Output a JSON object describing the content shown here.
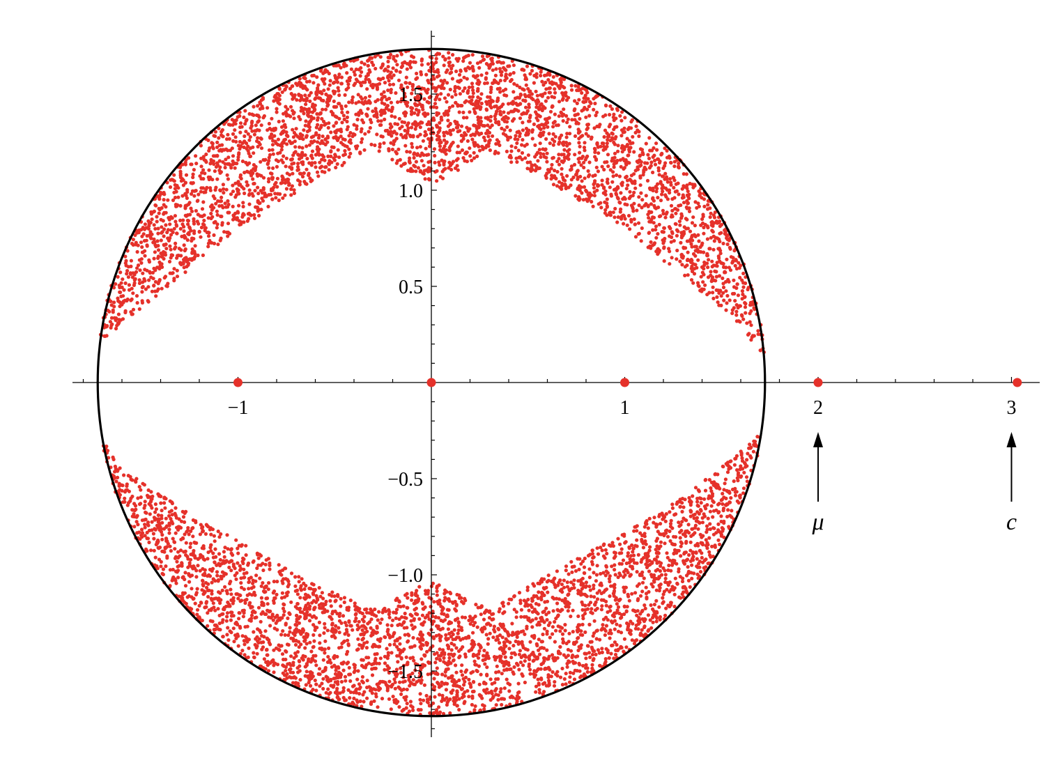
{
  "chart_data": {
    "type": "scatter",
    "title": "",
    "xlabel": "",
    "ylabel": "",
    "xlim": [
      -1.8,
      3.15
    ],
    "ylim": [
      -1.82,
      1.82
    ],
    "grid": false,
    "legend": "none",
    "x_ticks": [
      {
        "value": -1,
        "label": "−1"
      },
      {
        "value": 1,
        "label": "1"
      },
      {
        "value": 2,
        "label": "2"
      },
      {
        "value": 3,
        "label": "3"
      }
    ],
    "y_ticks": [
      {
        "value": 1.5,
        "label": "1.5"
      },
      {
        "value": 1.0,
        "label": "1.0"
      },
      {
        "value": 0.5,
        "label": "0.5"
      },
      {
        "value": -0.5,
        "label": "−0.5"
      },
      {
        "value": -1.0,
        "label": "−1.0"
      },
      {
        "value": -1.5,
        "label": "−1.5"
      }
    ],
    "x_minor_step": 0.2,
    "y_minor_step": 0.1,
    "circle": {
      "center": [
        0,
        0
      ],
      "radius": 1.73
    },
    "special_points": [
      {
        "name": "",
        "x": -1,
        "y": 0
      },
      {
        "name": "",
        "x": 0,
        "y": 0
      },
      {
        "name": "",
        "x": 1,
        "y": 0
      },
      {
        "name": "",
        "x": 2,
        "y": 0
      },
      {
        "name": "",
        "x": 3.03,
        "y": 0
      }
    ],
    "annotations": [
      {
        "label": "μ",
        "x": 2
      },
      {
        "label": "c",
        "x": 3
      }
    ],
    "cloud": {
      "count": 7200,
      "radius_max": 1.73,
      "top_min_y": 1.0,
      "bottom_min_abs_y": 1.03,
      "edge_gap_half_height": 0.08,
      "upper_band_boundary": [
        {
          "x": -1.75,
          "y": 0.18
        },
        {
          "x": -1.6,
          "y": 0.3
        },
        {
          "x": -1.3,
          "y": 0.55
        },
        {
          "x": -1.0,
          "y": 0.8
        },
        {
          "x": -0.6,
          "y": 1.05
        },
        {
          "x": -0.3,
          "y": 1.22
        },
        {
          "x": 0.0,
          "y": 1.02
        },
        {
          "x": 0.3,
          "y": 1.2
        },
        {
          "x": 0.6,
          "y": 1.05
        },
        {
          "x": 1.0,
          "y": 0.8
        },
        {
          "x": 1.3,
          "y": 0.55
        },
        {
          "x": 1.55,
          "y": 0.35
        },
        {
          "x": 1.75,
          "y": 0.1
        }
      ],
      "lower_band_boundary": [
        {
          "x": -1.75,
          "y": -0.22
        },
        {
          "x": -1.6,
          "y": -0.45
        },
        {
          "x": -1.3,
          "y": -0.65
        },
        {
          "x": -1.0,
          "y": -0.82
        },
        {
          "x": -0.6,
          "y": -1.05
        },
        {
          "x": -0.3,
          "y": -1.18
        },
        {
          "x": 0.0,
          "y": -1.03
        },
        {
          "x": 0.3,
          "y": -1.18
        },
        {
          "x": 0.6,
          "y": -1.0
        },
        {
          "x": 1.0,
          "y": -0.78
        },
        {
          "x": 1.3,
          "y": -0.6
        },
        {
          "x": 1.55,
          "y": -0.4
        },
        {
          "x": 1.75,
          "y": -0.22
        }
      ]
    },
    "colors": {
      "points": "#e5312a",
      "circle": "#000000",
      "axes": "#000000",
      "background": "#ffffff"
    }
  }
}
